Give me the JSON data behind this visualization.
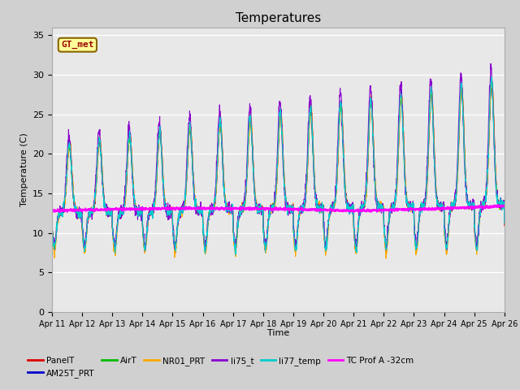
{
  "title": "Temperatures",
  "xlabel": "Time",
  "ylabel": "Temperature (C)",
  "ylim": [
    0,
    36
  ],
  "yticks": [
    0,
    5,
    10,
    15,
    20,
    25,
    30,
    35
  ],
  "tick_labels": [
    "Apr 11",
    "Apr 12",
    "Apr 13",
    "Apr 14",
    "Apr 15",
    "Apr 16",
    "Apr 17",
    "Apr 18",
    "Apr 19",
    "Apr 20",
    "Apr 21",
    "Apr 22",
    "Apr 23",
    "Apr 24",
    "Apr 25",
    "Apr 26"
  ],
  "series_colors": {
    "PanelT": "#dd0000",
    "AM25T_PRT": "#0000cc",
    "AirT": "#00bb00",
    "NR01_PRT": "#ffaa00",
    "li75_t": "#8800cc",
    "li77_temp": "#00cccc",
    "TC Prof A -32cm": "#ff00ff"
  },
  "legend_annotation": {
    "text": "GT_met",
    "facecolor": "#ffff99",
    "edgecolor": "#886600",
    "textcolor": "#990000"
  },
  "fig_facecolor": "#d0d0d0",
  "ax_facecolor": "#e8e8e8",
  "grid_color": "#ffffff",
  "title_fontsize": 11
}
